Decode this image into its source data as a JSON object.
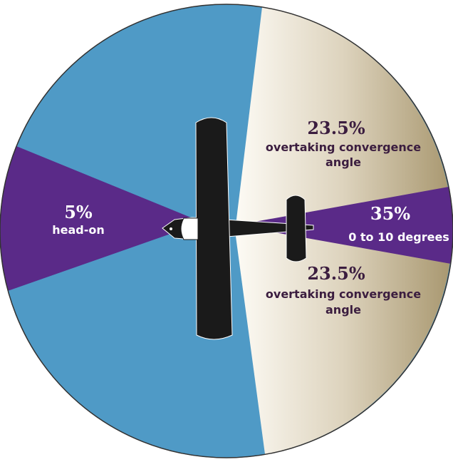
{
  "regions": [
    {
      "percent": "5%",
      "label": "head-on"
    },
    {
      "percent": "35%",
      "label": "0 to 10 degrees"
    },
    {
      "percent": "23.5%",
      "label": [
        "overtaking convergence",
        "angle"
      ]
    },
    {
      "percent": "23.5%",
      "label": [
        "overtaking convergence",
        "angle"
      ]
    }
  ]
}
